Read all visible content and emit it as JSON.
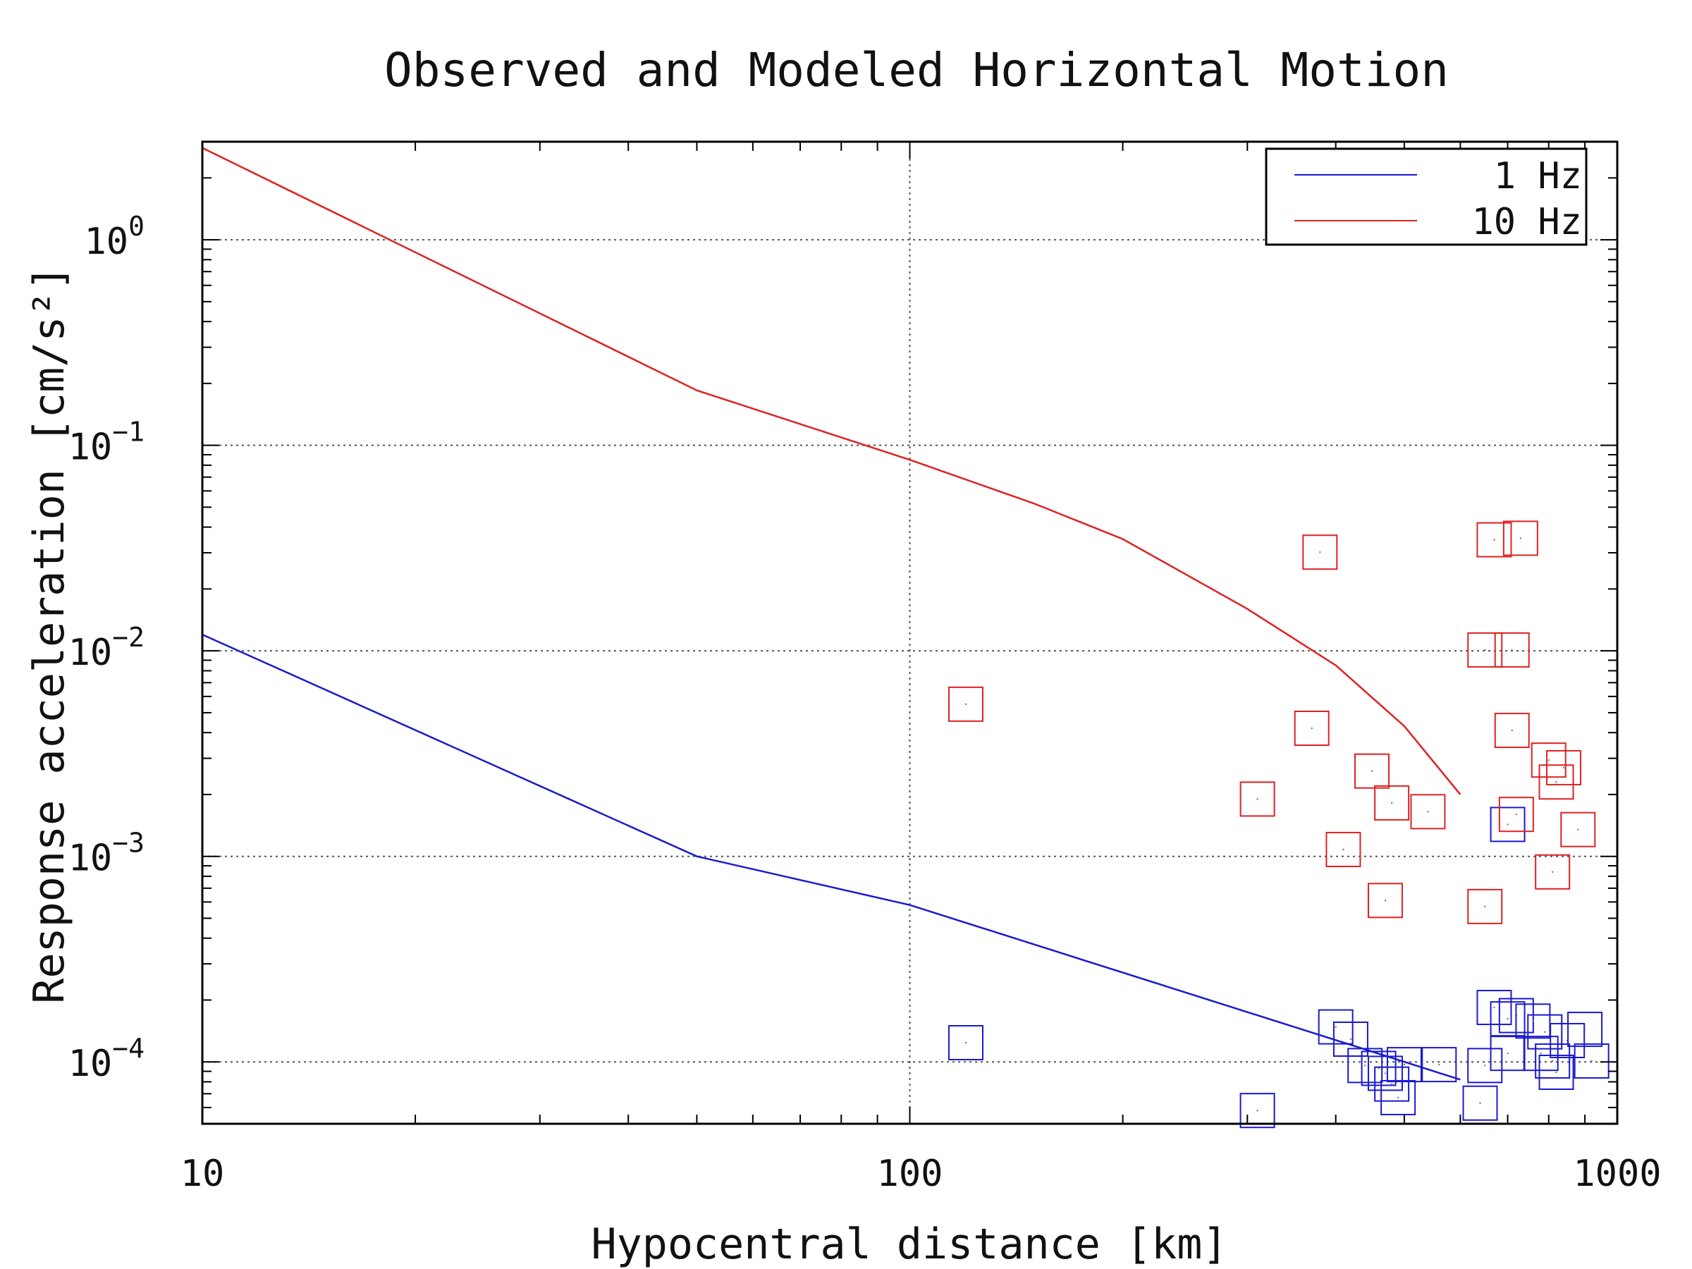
{
  "chart_data": {
    "type": "scatter",
    "title": "Observed and Modeled Horizontal Motion",
    "xlabel": "Hypocentral distance [km]",
    "ylabel": "Response acceleration [cm/s²]",
    "xscale": "log",
    "yscale": "log",
    "xlim": [
      10,
      1000
    ],
    "ylim": [
      5e-05,
      3
    ],
    "xticks": [
      {
        "value": 10,
        "label": "10"
      },
      {
        "value": 100,
        "label": "100"
      },
      {
        "value": 1000,
        "label": "1000"
      }
    ],
    "yticks": [
      {
        "value": 1,
        "mant": "10",
        "exp": "0"
      },
      {
        "value": 0.1,
        "mant": "10",
        "exp": "−1"
      },
      {
        "value": 0.01,
        "mant": "10",
        "exp": "−2"
      },
      {
        "value": 0.001,
        "mant": "10",
        "exp": "−3"
      },
      {
        "value": 0.0001,
        "mant": "10",
        "exp": "−4"
      }
    ],
    "grid": true,
    "legend_position": "top-right",
    "series": [
      {
        "name": "1 Hz",
        "color": "#1a1acc",
        "model": {
          "x": [
            10,
            50,
            100,
            600
          ],
          "y": [
            0.012,
            0.001,
            0.00058,
            8.2e-05
          ]
        },
        "observed": {
          "x": [
            120,
            310,
            400,
            420,
            440,
            460,
            470,
            480,
            490,
            500,
            560,
            640,
            650,
            670,
            700,
            700,
            700,
            720,
            760,
            780,
            790,
            810,
            820,
            850,
            900,
            920
          ],
          "y": [
            0.000124,
            5.8e-05,
            0.000148,
            0.000129,
            9.6e-05,
            9.3e-05,
            8.8e-05,
            7.8e-05,
            6.7e-05,
            9.7e-05,
            9.7e-05,
            6.3e-05,
            9.6e-05,
            0.000184,
            0.000162,
            0.00011,
            0.00143,
            0.000168,
            0.000158,
            0.00011,
            0.00014,
            0.000101,
            8.9e-05,
            0.000127,
            0.000144,
            0.000101
          ]
        }
      },
      {
        "name": "10 Hz",
        "color": "#dd2222",
        "model": {
          "x": [
            10,
            50,
            100,
            150,
            200,
            300,
            400,
            500,
            600
          ],
          "y": [
            2.8,
            0.185,
            0.085,
            0.052,
            0.035,
            0.016,
            0.0085,
            0.0043,
            0.002
          ]
        },
        "observed": {
          "x": [
            120,
            310,
            370,
            380,
            410,
            450,
            470,
            480,
            540,
            650,
            650,
            670,
            710,
            710,
            720,
            730,
            800,
            810,
            820,
            840,
            880
          ],
          "y": [
            0.0055,
            0.0019,
            0.0042,
            0.0302,
            0.00108,
            0.0026,
            0.00061,
            0.00182,
            0.00165,
            0.0101,
            0.00057,
            0.0347,
            0.0101,
            0.0041,
            0.0016,
            0.0353,
            0.00294,
            0.00084,
            0.0023,
            0.0027,
            0.00135
          ]
        }
      }
    ]
  }
}
